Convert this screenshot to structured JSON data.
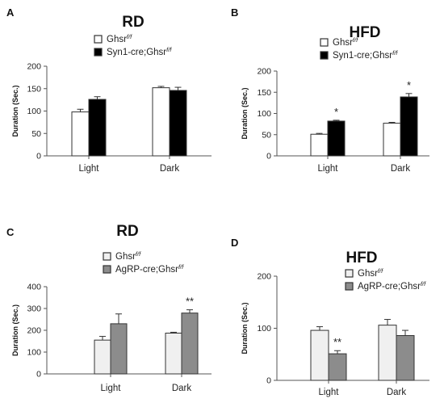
{
  "chart_data": [
    {
      "panel": "A",
      "type": "bar",
      "title": "RD",
      "ylabel": "Duration (Sec.)",
      "categories": [
        "Light",
        "Dark"
      ],
      "ylim": [
        0,
        200
      ],
      "yticks": [
        0,
        50,
        100,
        150,
        200
      ],
      "legend_position": "top-left",
      "series": [
        {
          "name": "Ghsr",
          "name_sup": "f/f",
          "color": "#ffffff",
          "values": [
            98,
            152
          ],
          "errors": [
            6,
            3
          ]
        },
        {
          "name": "Syn1-cre;Ghsr",
          "name_sup": "f/f",
          "color": "#000000",
          "values": [
            126,
            146
          ],
          "errors": [
            6,
            7
          ]
        }
      ],
      "significance": [
        "",
        ""
      ]
    },
    {
      "panel": "B",
      "type": "bar",
      "title": "HFD",
      "ylabel": "Duration (Sec.)",
      "categories": [
        "Light",
        "Dark"
      ],
      "ylim": [
        0,
        200
      ],
      "yticks": [
        0,
        50,
        100,
        150,
        200
      ],
      "legend_position": "top-left",
      "series": [
        {
          "name": "Ghsr",
          "name_sup": "f/f",
          "color": "#ffffff",
          "values": [
            51,
            77
          ],
          "errors": [
            2,
            2
          ]
        },
        {
          "name": "Syn1-cre;Ghsr",
          "name_sup": "f/f",
          "color": "#000000",
          "values": [
            82,
            139
          ],
          "errors": [
            2,
            8
          ]
        }
      ],
      "significance": [
        "*",
        "*"
      ]
    },
    {
      "panel": "C",
      "type": "bar",
      "title": "RD",
      "ylabel": "Duration (Sec.)",
      "categories": [
        "Light",
        "Dark"
      ],
      "ylim": [
        0,
        400
      ],
      "yticks": [
        0,
        100,
        200,
        300,
        400
      ],
      "legend_position": "top-left",
      "series": [
        {
          "name": "Ghsr",
          "name_sup": "f/f",
          "color": "#f0f0f0",
          "values": [
            155,
            187
          ],
          "errors": [
            17,
            4
          ]
        },
        {
          "name": "AgRP-cre;Ghsr",
          "name_sup": "f/f",
          "color": "#8c8c8c",
          "values": [
            230,
            279
          ],
          "errors": [
            45,
            15
          ]
        }
      ],
      "significance": [
        "",
        "**"
      ]
    },
    {
      "panel": "D",
      "type": "bar",
      "title": "HFD",
      "ylabel": "Duration (Sec.)",
      "categories": [
        "Light",
        "Dark"
      ],
      "ylim": [
        0,
        200
      ],
      "yticks": [
        0,
        100,
        200
      ],
      "legend_position": "top-left",
      "series": [
        {
          "name": "Ghsr",
          "name_sup": "f/f",
          "color": "#f0f0f0",
          "values": [
            96,
            106
          ],
          "errors": [
            7,
            11
          ]
        },
        {
          "name": "AgRP-cre;Ghsr",
          "name_sup": "f/f",
          "color": "#8c8c8c",
          "values": [
            51,
            86
          ],
          "errors": [
            6,
            10
          ]
        }
      ],
      "significance": [
        "**",
        ""
      ]
    }
  ]
}
